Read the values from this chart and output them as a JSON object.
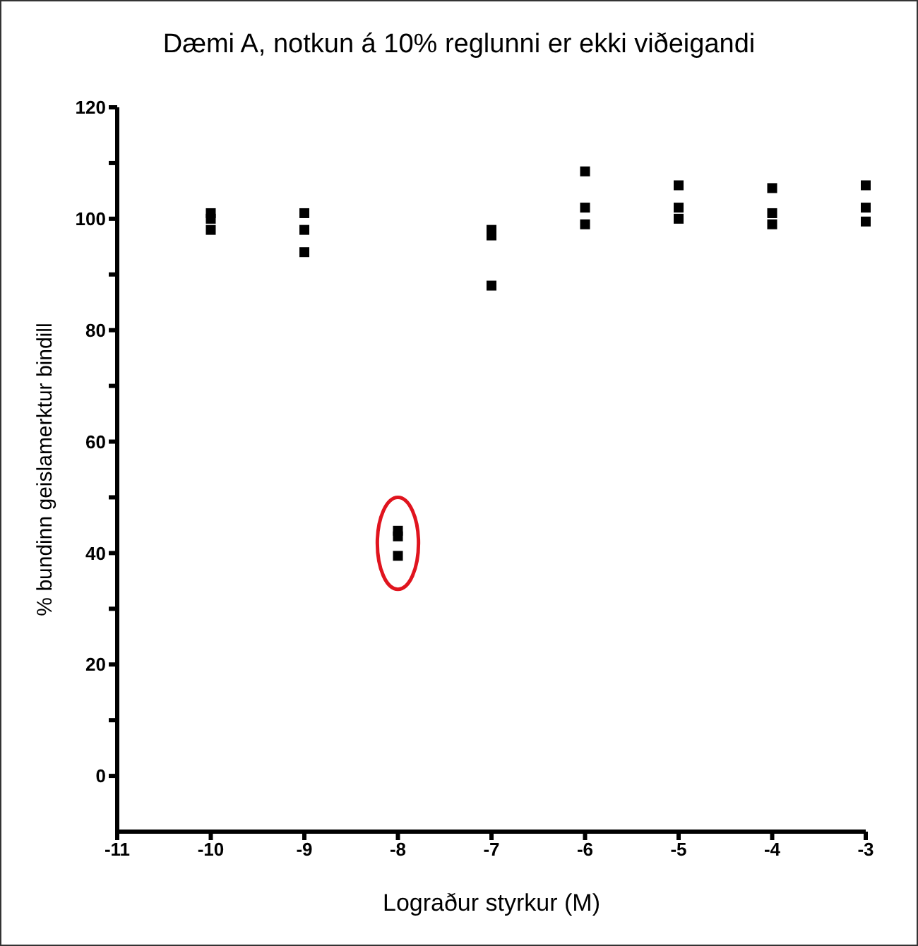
{
  "chart_data": {
    "type": "scatter",
    "title": "Dæmi A, notkun á 10% reglunni er ekki viðeigandi",
    "xlabel": "Lograður styrkur (M)",
    "ylabel": "% bundinn geislamerktur bindill",
    "x": [
      -10,
      -10,
      -10,
      -9,
      -9,
      -9,
      -8,
      -8,
      -8,
      -7,
      -7,
      -7,
      -6,
      -6,
      -6,
      -5,
      -5,
      -5,
      -4,
      -4,
      -4,
      -3,
      -3,
      -3
    ],
    "values": [
      101,
      100,
      98,
      101,
      98,
      94,
      44,
      43,
      39.5,
      98,
      97,
      88,
      108.5,
      102,
      99,
      106,
      102,
      100,
      105.5,
      101,
      99,
      106,
      102,
      99.5
    ],
    "color": "#000000",
    "marker": "square",
    "xlim": [
      -11,
      -3
    ],
    "xticks": [
      -11,
      -10,
      -9,
      -8,
      -7,
      -6,
      -5,
      -4,
      -3
    ],
    "ylim": [
      -10,
      120
    ],
    "yticks": [
      0,
      {
        "value": 10,
        "label": null
      },
      20,
      {
        "value": 30,
        "label": null
      },
      40,
      {
        "value": 50,
        "label": null
      },
      60,
      {
        "value": 70,
        "label": null
      },
      80,
      {
        "value": 90,
        "label": null
      },
      100,
      {
        "value": 110,
        "label": null
      },
      120
    ],
    "grid": false,
    "legend": false
  }
}
